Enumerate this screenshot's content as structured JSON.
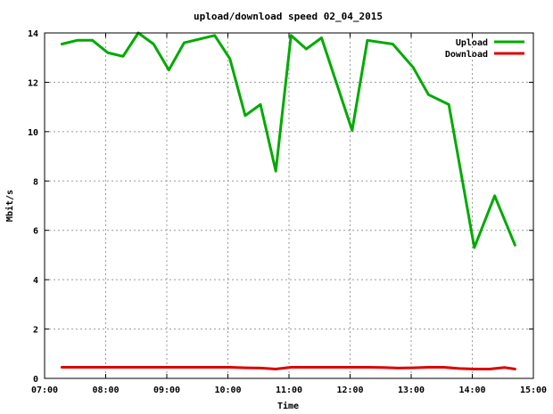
{
  "chart_data": {
    "type": "line",
    "title": "upload/download speed 02_04_2015",
    "xlabel": "Time",
    "ylabel": "Mbit/s",
    "x_tick_labels": [
      "07:00",
      "08:00",
      "09:00",
      "10:00",
      "11:00",
      "12:00",
      "13:00",
      "14:00",
      "15:00"
    ],
    "x_ticks_hours": [
      7,
      8,
      9,
      10,
      11,
      12,
      13,
      14,
      15
    ],
    "y_ticks": [
      0,
      2,
      4,
      6,
      8,
      10,
      12,
      14
    ],
    "xlim": [
      "07:00",
      "15:00"
    ],
    "ylim": [
      0,
      14
    ],
    "grid": true,
    "legend_position": "top-right",
    "x": [
      "07:17",
      "07:32",
      "07:47",
      "08:02",
      "08:17",
      "08:32",
      "08:47",
      "09:02",
      "09:17",
      "09:32",
      "09:47",
      "10:02",
      "10:17",
      "10:32",
      "10:47",
      "11:02",
      "11:17",
      "11:32",
      "11:47",
      "12:02",
      "12:17",
      "12:32",
      "12:47",
      "13:02",
      "13:17",
      "13:32",
      "13:47",
      "14:02",
      "14:17",
      "14:32",
      "14:47"
    ],
    "series": [
      {
        "name": "Upload",
        "color": "#00aa00",
        "values": [
          13.55,
          13.7,
          13.7,
          13.2,
          13.05,
          14.0,
          13.55,
          12.5,
          13.6,
          13.75,
          13.9,
          12.95,
          10.65,
          11.1,
          8.4,
          13.9,
          13.35,
          13.8,
          10.05,
          null,
          13.7,
          13.55,
          12.6,
          11.5,
          11.1,
          null,
          5.3,
          7.4,
          5.4,
          null,
          null
        ],
        "x": [
          "07:17",
          "07:32",
          "07:47",
          "08:02",
          "08:17",
          "08:32",
          "08:47",
          "09:02",
          "09:17",
          "09:32",
          "09:47",
          "10:02",
          "10:17",
          "10:32",
          "10:47",
          "11:02",
          "11:17",
          "11:32",
          "12:02",
          "12:02",
          "12:17",
          "12:42",
          "13:02",
          "13:17",
          "13:37",
          "13:52",
          "14:02",
          "14:22",
          "14:42",
          "14:42",
          "14:42"
        ]
      },
      {
        "name": "Download",
        "color": "#dd0000",
        "values": [
          0.45,
          0.45,
          0.45,
          0.45,
          0.45,
          0.45,
          0.45,
          0.45,
          0.45,
          0.45,
          0.45,
          0.45,
          0.43,
          0.42,
          0.38,
          0.45,
          0.45,
          0.45,
          0.45,
          0.45,
          0.45,
          0.44,
          0.42,
          0.43,
          0.45,
          0.45,
          0.4,
          0.38,
          0.38,
          0.44,
          0.38
        ],
        "x": [
          "07:17",
          "07:32",
          "07:47",
          "08:02",
          "08:17",
          "08:32",
          "08:47",
          "09:02",
          "09:17",
          "09:32",
          "09:47",
          "10:02",
          "10:17",
          "10:32",
          "10:47",
          "11:02",
          "11:17",
          "11:32",
          "11:47",
          "12:02",
          "12:17",
          "12:32",
          "12:47",
          "13:02",
          "13:17",
          "13:32",
          "13:47",
          "14:02",
          "14:17",
          "14:32",
          "14:42"
        ]
      }
    ]
  }
}
